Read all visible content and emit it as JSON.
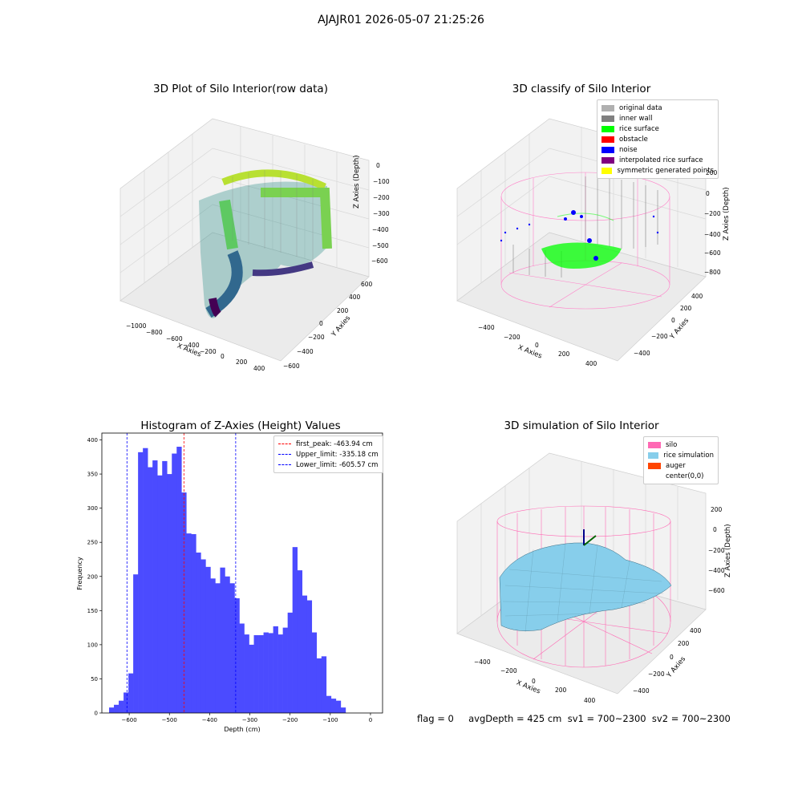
{
  "suptitle": "AJAJR01 2026-05-07 21:25:26",
  "panels": {
    "raw": {
      "title": "3D Plot of Silo Interior(row data)",
      "xlabel": "X Axies",
      "ylabel": "Y Axies",
      "zlabel": "Z Axies (Depth)",
      "xticks": [
        "−1000",
        "−800",
        "−600",
        "−400",
        "−200",
        "0",
        "200",
        "400"
      ],
      "yticks": [
        "−600",
        "−400",
        "−200",
        "0",
        "200",
        "400",
        "600"
      ],
      "zticks": [
        "0",
        "−100",
        "−200",
        "−300",
        "−400",
        "−500",
        "−600"
      ]
    },
    "classify": {
      "title": "3D classify of Silo Interior",
      "xlabel": "X Axies",
      "ylabel": "Y Axies",
      "zlabel": "Z Axies (Depth)",
      "xticks": [
        "−400",
        "−200",
        "0",
        "200",
        "400"
      ],
      "yticks": [
        "−400",
        "−200",
        "0",
        "200",
        "400"
      ],
      "zticks": [
        "200",
        "0",
        "−200",
        "−400",
        "−600",
        "−800"
      ],
      "legend": [
        {
          "label": "original data",
          "color": "#b0b0b0"
        },
        {
          "label": "inner wall",
          "color": "#808080"
        },
        {
          "label": "rice surface",
          "color": "#00ff00"
        },
        {
          "label": "obstacle",
          "color": "#ff0000"
        },
        {
          "label": "noise",
          "color": "#0000ff"
        },
        {
          "label": "interpolated rice surface",
          "color": "#800080"
        },
        {
          "label": "symmetric generated points",
          "color": "#ffff00"
        }
      ]
    },
    "simulation": {
      "title": "3D simulation of Silo Interior",
      "xlabel": "X Axies",
      "ylabel": "Y Axies",
      "zlabel": "Z Axies (Depth)",
      "xticks": [
        "−400",
        "−200",
        "0",
        "200",
        "400"
      ],
      "yticks": [
        "−400",
        "−200",
        "0",
        "200",
        "400"
      ],
      "zticks": [
        "200",
        "0",
        "−200",
        "−400",
        "−600"
      ],
      "legend": [
        {
          "label": "silo",
          "color": "#ff69b4"
        },
        {
          "label": "rice simulation",
          "color": "#87ceeb"
        },
        {
          "label": "auger",
          "color": "#ff4500"
        },
        {
          "label": "center(0,0)",
          "color": ""
        }
      ]
    }
  },
  "chart_data": {
    "type": "bar",
    "title": "Histogram of Z-Axies (Height) Values",
    "xlabel": "Depth (cm)",
    "ylabel": "Frequency",
    "xlim": [
      -668,
      30
    ],
    "ylim": [
      0,
      410
    ],
    "bar_color": "#4b4bff",
    "bin_width": 12,
    "bin_start": -650,
    "values": [
      8,
      12,
      18,
      30,
      58,
      203,
      382,
      388,
      360,
      370,
      348,
      369,
      350,
      380,
      390,
      323,
      263,
      262,
      235,
      225,
      214,
      197,
      190,
      213,
      200,
      190,
      168,
      131,
      115,
      100,
      114,
      114,
      118,
      117,
      127,
      115,
      125,
      147,
      243,
      209,
      172,
      165,
      118,
      80,
      83,
      25,
      21,
      18,
      8
    ],
    "xticks": [
      -600,
      -500,
      -400,
      -300,
      -200,
      -100,
      0
    ],
    "yticks": [
      0,
      50,
      100,
      150,
      200,
      250,
      300,
      350,
      400
    ],
    "vlines": [
      {
        "label": "first_peak: -463.94 cm",
        "x": -463.94,
        "color": "#ff0000"
      },
      {
        "label": "Upper_limit: -335.18 cm",
        "x": -335.18,
        "color": "#0000ff"
      },
      {
        "label": "Lower_limit: -605.57 cm",
        "x": -605.57,
        "color": "#0000ff"
      }
    ],
    "legend_position": "top-right"
  },
  "footer": "flag = 0     avgDepth = 425 cm  sv1 = 700~2300  sv2 = 700~2300"
}
